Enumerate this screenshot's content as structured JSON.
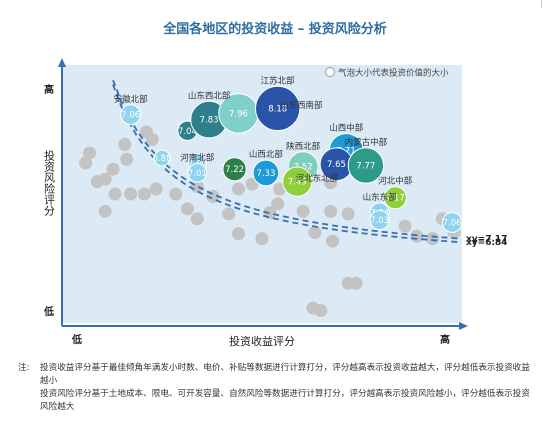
{
  "chart_data": {
    "type": "scatter",
    "title": "全国各地区的投资收益 – 投资风险分析",
    "xlabel": "投资收益评分",
    "ylabel": "投资风险评分",
    "x_tick_labels": [
      "低",
      "高"
    ],
    "y_tick_labels": [
      "高",
      "低"
    ],
    "legend": "气泡大小代表投资价值的大小",
    "legend_position": "top-right",
    "grid": false,
    "curves": [
      {
        "label": "xy=7.17",
        "value": 7.17
      },
      {
        "label": "xy=6.84",
        "value": 6.84
      }
    ],
    "highlighted": [
      {
        "label": "7.06",
        "name": "安徽北部",
        "x": 0.165,
        "y": 0.82,
        "color": "#8fd3ef"
      },
      {
        "label": "6.88",
        "name": "",
        "x": 0.245,
        "y": 0.645,
        "color": "#8fd3ef"
      },
      {
        "label": "7.04",
        "name": "",
        "x": 0.31,
        "y": 0.755,
        "color": "#2e7f8a"
      },
      {
        "label": "7.83",
        "name": "山东西北部",
        "x": 0.365,
        "y": 0.8,
        "color": "#2e7f8a"
      },
      {
        "label": "7.96",
        "name": "",
        "x": 0.44,
        "y": 0.825,
        "color": "#7fd0c8"
      },
      {
        "label": "8.18",
        "name": "江苏北部",
        "x": 0.54,
        "y": 0.845,
        "color": "#2a54a8"
      },
      {
        "label": "",
        "name": "山东西南部",
        "x": 0.6,
        "y": 0.78,
        "color": ""
      },
      {
        "label": "7.00",
        "name": "",
        "x": 0.335,
        "y": 0.625,
        "color": "#8fd3ef"
      },
      {
        "label": "7.01",
        "name": "河南北部",
        "x": 0.335,
        "y": 0.585,
        "color": "#8fd3ef"
      },
      {
        "label": "7.22",
        "name": "",
        "x": 0.43,
        "y": 0.6,
        "color": "#2e7f47"
      },
      {
        "label": "7.33",
        "name": "山西北部",
        "x": 0.51,
        "y": 0.585,
        "color": "#1e9ad6"
      },
      {
        "label": "7.52",
        "name": "陕西北部",
        "x": 0.605,
        "y": 0.61,
        "color": "#7fd0b8"
      },
      {
        "label": "7.49",
        "name": "",
        "x": 0.59,
        "y": 0.55,
        "color": "#8fcf3a"
      },
      {
        "label": "",
        "name": "河北东北部",
        "x": 0.64,
        "y": 0.485,
        "color": ""
      },
      {
        "label": "7.71",
        "name": "山西中部",
        "x": 0.715,
        "y": 0.675,
        "color": "#1e9ad6"
      },
      {
        "label": "7.65",
        "name": "",
        "x": 0.69,
        "y": 0.62,
        "color": "#2a54a8"
      },
      {
        "label": "7.77",
        "name": "内蒙古中部",
        "x": 0.765,
        "y": 0.615,
        "color": "#2e9a8a"
      },
      {
        "label": "7.17",
        "name": "河北中部",
        "x": 0.84,
        "y": 0.485,
        "color": "#8fcf3a"
      },
      {
        "label": "7.04",
        "name": "山东东部",
        "x": 0.8,
        "y": 0.425,
        "color": "#8fd3ef"
      },
      {
        "label": "7.03",
        "name": "",
        "x": 0.8,
        "y": 0.395,
        "color": "#8fd3ef"
      },
      {
        "label": "7.06",
        "name": "",
        "x": 0.985,
        "y": 0.385,
        "color": "#8fd3ef"
      }
    ],
    "others": [
      [
        0.05,
        0.625
      ],
      [
        0.06,
        0.665
      ],
      [
        0.08,
        0.55
      ],
      [
        0.1,
        0.56
      ],
      [
        0.12,
        0.6
      ],
      [
        0.155,
        0.64
      ],
      [
        0.15,
        0.7
      ],
      [
        0.22,
        0.72
      ],
      [
        0.205,
        0.75
      ],
      [
        0.1,
        0.43
      ],
      [
        0.125,
        0.5
      ],
      [
        0.165,
        0.5
      ],
      [
        0.2,
        0.5
      ],
      [
        0.23,
        0.52
      ],
      [
        0.28,
        0.5
      ],
      [
        0.375,
        0.49
      ],
      [
        0.335,
        0.53
      ],
      [
        0.44,
        0.52
      ],
      [
        0.475,
        0.54
      ],
      [
        0.545,
        0.52
      ],
      [
        0.31,
        0.44
      ],
      [
        0.335,
        0.4
      ],
      [
        0.415,
        0.42
      ],
      [
        0.52,
        0.425
      ],
      [
        0.54,
        0.46
      ],
      [
        0.605,
        0.43
      ],
      [
        0.675,
        0.43
      ],
      [
        0.72,
        0.42
      ],
      [
        0.675,
        0.545
      ],
      [
        0.635,
        0.345
      ],
      [
        0.68,
        0.31
      ],
      [
        0.865,
        0.37
      ],
      [
        0.63,
        0.04
      ],
      [
        0.65,
        0.03
      ],
      [
        0.72,
        0.14
      ],
      [
        0.74,
        0.14
      ],
      [
        0.895,
        0.33
      ],
      [
        0.935,
        0.32
      ],
      [
        0.99,
        0.345
      ],
      [
        0.96,
        0.4
      ],
      [
        0.5,
        0.32
      ],
      [
        0.44,
        0.34
      ]
    ]
  },
  "notes": {
    "prefix": "注:",
    "lines": [
      "投资收益评分基于最佳倾角年满发小时数、电价、补贴等数据进行计算打分，评分越高表示投资收益越大，评分越低表示投资收益越小",
      "投资风险评分基于土地成本、限电、可开发容量、自然风险等数据进行计算打分，评分越高表示投资风险越小，评分越低表示投资风险越大"
    ]
  }
}
